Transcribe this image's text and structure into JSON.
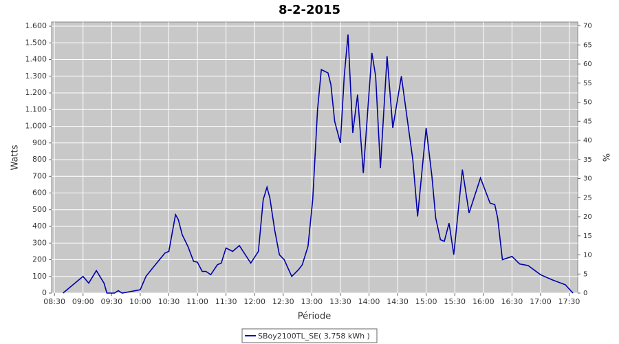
{
  "chart_data": {
    "type": "line",
    "title": "8-2-2015",
    "xlabel": "Période",
    "ylabel": "Watts",
    "y2label": "%",
    "x": [
      "08:39",
      "09:00",
      "09:06",
      "09:14",
      "09:22",
      "09:25",
      "09:33",
      "09:37",
      "09:41",
      "10:00",
      "10:06",
      "10:13",
      "10:26",
      "10:30",
      "10:37",
      "10:40",
      "10:44",
      "10:50",
      "10:56",
      "11:00",
      "11:05",
      "11:09",
      "11:14",
      "11:21",
      "11:25",
      "11:30",
      "11:37",
      "11:44",
      "11:56",
      "12:04",
      "12:09",
      "12:13",
      "12:16",
      "12:21",
      "12:26",
      "12:31",
      "12:39",
      "12:46",
      "12:50",
      "12:56",
      "13:01",
      "13:06",
      "13:10",
      "13:17",
      "13:20",
      "13:24",
      "13:30",
      "13:34",
      "13:38",
      "13:43",
      "13:48",
      "13:54",
      "14:03",
      "14:07",
      "14:12",
      "14:19",
      "14:25",
      "14:34",
      "14:40",
      "14:46",
      "14:51",
      "15:00",
      "15:06",
      "15:10",
      "15:15",
      "15:19",
      "15:24",
      "15:29",
      "15:38",
      "15:45",
      "15:57",
      "16:07",
      "16:12",
      "16:15",
      "16:20",
      "16:30",
      "16:38",
      "16:47",
      "17:00",
      "17:12",
      "17:26",
      "17:34"
    ],
    "series": [
      {
        "name": "SBoy2100TL_SE( 3,758 kWh )",
        "color": "#0000a8",
        "values": [
          0,
          100,
          60,
          135,
          60,
          0,
          0,
          15,
          0,
          20,
          100,
          150,
          240,
          250,
          470,
          440,
          350,
          280,
          190,
          185,
          130,
          130,
          110,
          170,
          180,
          270,
          250,
          285,
          180,
          250,
          560,
          635,
          570,
          380,
          230,
          200,
          100,
          140,
          170,
          280,
          560,
          1100,
          1340,
          1320,
          1250,
          1030,
          900,
          1300,
          1550,
          960,
          1190,
          720,
          1440,
          1300,
          750,
          1420,
          990,
          1300,
          1050,
          800,
          460,
          990,
          700,
          450,
          320,
          310,
          420,
          230,
          740,
          480,
          690,
          540,
          530,
          450,
          200,
          220,
          175,
          165,
          110,
          80,
          50,
          0
        ]
      }
    ],
    "xlim": [
      "08:27",
      "17:39"
    ],
    "xticks": [
      "08:30",
      "09:00",
      "09:30",
      "10:00",
      "10:30",
      "11:00",
      "11:30",
      "12:00",
      "12:30",
      "13:00",
      "13:30",
      "14:00",
      "14:30",
      "15:00",
      "15:30",
      "16:00",
      "16:30",
      "17:00",
      "17:30"
    ],
    "ylim": [
      0,
      1625
    ],
    "yticks": [
      0,
      100,
      200,
      300,
      400,
      500,
      600,
      700,
      800,
      900,
      {
        "value": 1000,
        "label": "1.000"
      },
      {
        "value": 1100,
        "label": "1.100"
      },
      {
        "value": 1200,
        "label": "1.200"
      },
      {
        "value": 1300,
        "label": "1.300"
      },
      {
        "value": 1400,
        "label": "1.400"
      },
      {
        "value": 1500,
        "label": "1.500"
      },
      {
        "value": 1600,
        "label": "1.600"
      }
    ],
    "y2lim": [
      0,
      71
    ],
    "y2ticks": [
      0,
      5,
      10,
      15,
      20,
      25,
      30,
      35,
      40,
      45,
      50,
      55,
      60,
      65,
      70
    ],
    "grid": true
  }
}
